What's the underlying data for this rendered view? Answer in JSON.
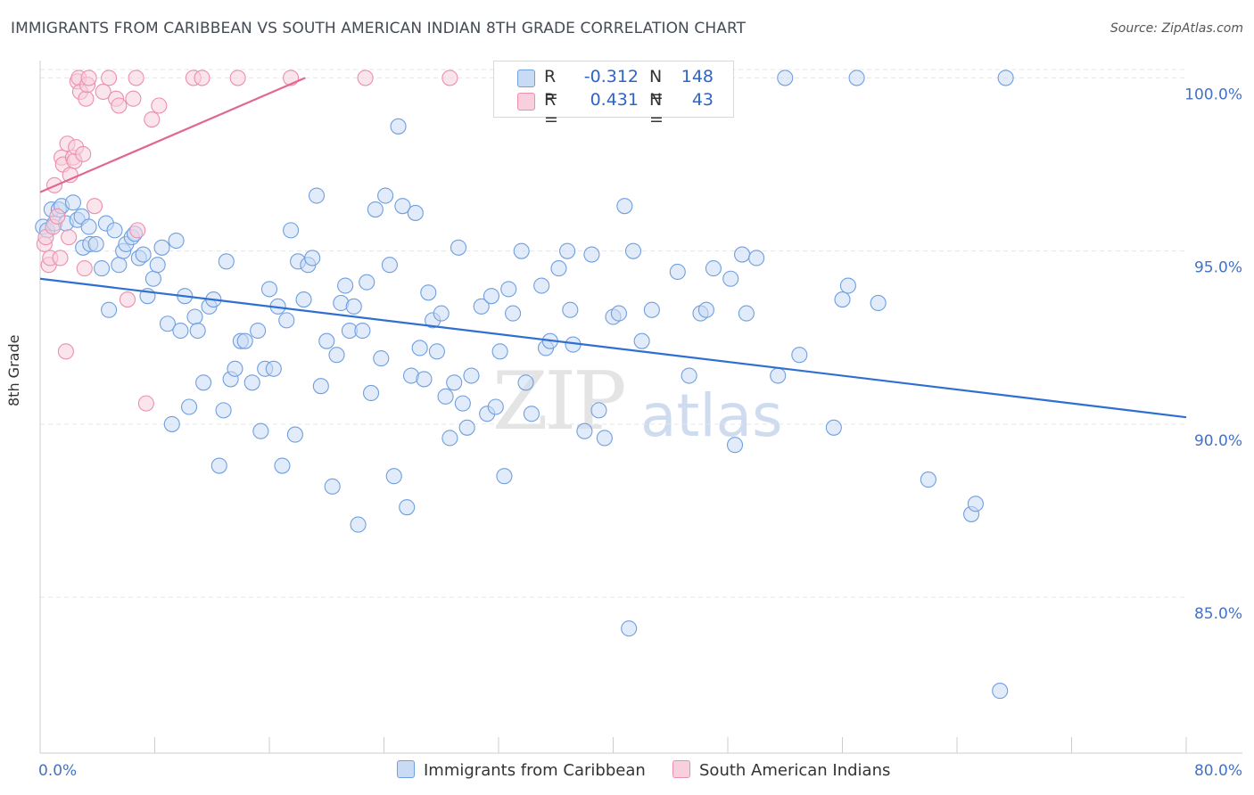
{
  "title": "IMMIGRANTS FROM CARIBBEAN VS SOUTH AMERICAN INDIAN 8TH GRADE CORRELATION CHART",
  "source": "Source: ZipAtlas.com",
  "watermark": {
    "zip": "ZIP",
    "atlas": "atlas"
  },
  "legend": {
    "r_label": "R =",
    "n_label": "N =",
    "rows": [
      {
        "name": "Immigrants from Caribbean",
        "r": "-0.312",
        "n": "148",
        "color": "#9dbde8"
      },
      {
        "name": "South American Indians",
        "r": "0.431",
        "n": "43",
        "color": "#f4a9c0"
      }
    ]
  },
  "chart_data": {
    "type": "scatter",
    "title": "IMMIGRANTS FROM CARIBBEAN VS SOUTH AMERICAN INDIAN 8TH GRADE CORRELATION CHART",
    "xlabel": "",
    "ylabel": "8th Grade",
    "xlim": [
      0,
      80
    ],
    "ylim": [
      80.5,
      100.5
    ],
    "x_tick_labels": [
      "0.0%",
      "80.0%"
    ],
    "y_ticks": [
      85,
      90,
      95,
      100
    ],
    "y_tick_labels": [
      "85.0%",
      "90.0%",
      "95.0%",
      "100.0%"
    ],
    "grid": true,
    "series": [
      {
        "name": "Immigrants from Caribbean",
        "color": "#6f9fe0",
        "fill": "#c9dbf4",
        "trend": {
          "x": [
            0,
            80
          ],
          "y": [
            94.2,
            90.2
          ]
        },
        "points": [
          [
            0.2,
            95.7
          ],
          [
            0.5,
            95.6
          ],
          [
            0.8,
            96.2
          ],
          [
            1.0,
            95.8
          ],
          [
            1.3,
            96.2
          ],
          [
            1.5,
            96.3
          ],
          [
            1.8,
            95.8
          ],
          [
            2.3,
            96.4
          ],
          [
            2.6,
            95.9
          ],
          [
            2.9,
            96.0
          ],
          [
            3.0,
            95.1
          ],
          [
            3.4,
            95.7
          ],
          [
            3.5,
            95.2
          ],
          [
            3.9,
            95.2
          ],
          [
            4.3,
            94.5
          ],
          [
            4.6,
            95.8
          ],
          [
            4.8,
            93.3
          ],
          [
            5.2,
            95.6
          ],
          [
            5.5,
            94.6
          ],
          [
            5.8,
            95.0
          ],
          [
            6.0,
            95.2
          ],
          [
            6.4,
            95.4
          ],
          [
            6.6,
            95.5
          ],
          [
            6.9,
            94.8
          ],
          [
            7.2,
            94.9
          ],
          [
            7.5,
            93.7
          ],
          [
            7.9,
            94.2
          ],
          [
            8.2,
            94.6
          ],
          [
            8.5,
            95.1
          ],
          [
            8.9,
            92.9
          ],
          [
            9.2,
            90.0
          ],
          [
            9.5,
            95.3
          ],
          [
            9.8,
            92.7
          ],
          [
            10.1,
            93.7
          ],
          [
            10.4,
            90.5
          ],
          [
            10.8,
            93.1
          ],
          [
            11.0,
            92.7
          ],
          [
            11.4,
            91.2
          ],
          [
            11.8,
            93.4
          ],
          [
            12.1,
            93.6
          ],
          [
            12.5,
            88.8
          ],
          [
            12.8,
            90.4
          ],
          [
            13.0,
            94.7
          ],
          [
            13.3,
            91.3
          ],
          [
            13.6,
            91.6
          ],
          [
            14.0,
            92.4
          ],
          [
            14.3,
            92.4
          ],
          [
            14.8,
            91.2
          ],
          [
            15.2,
            92.7
          ],
          [
            15.4,
            89.8
          ],
          [
            15.7,
            91.6
          ],
          [
            16.0,
            93.9
          ],
          [
            16.3,
            91.6
          ],
          [
            16.6,
            93.4
          ],
          [
            16.9,
            88.8
          ],
          [
            17.2,
            93.0
          ],
          [
            17.5,
            95.6
          ],
          [
            17.8,
            89.7
          ],
          [
            18.0,
            94.7
          ],
          [
            18.4,
            93.6
          ],
          [
            18.7,
            94.6
          ],
          [
            19.0,
            94.8
          ],
          [
            19.3,
            96.6
          ],
          [
            19.6,
            91.1
          ],
          [
            20.0,
            92.4
          ],
          [
            20.4,
            88.2
          ],
          [
            20.7,
            92.0
          ],
          [
            21.0,
            93.5
          ],
          [
            21.3,
            94.0
          ],
          [
            21.6,
            92.7
          ],
          [
            21.9,
            93.4
          ],
          [
            22.2,
            87.1
          ],
          [
            22.5,
            92.7
          ],
          [
            22.8,
            94.1
          ],
          [
            23.1,
            90.9
          ],
          [
            23.4,
            96.2
          ],
          [
            23.8,
            91.9
          ],
          [
            24.1,
            96.6
          ],
          [
            24.4,
            94.6
          ],
          [
            24.7,
            88.5
          ],
          [
            25.0,
            98.6
          ],
          [
            25.3,
            96.3
          ],
          [
            25.6,
            87.6
          ],
          [
            25.9,
            91.4
          ],
          [
            26.2,
            96.1
          ],
          [
            26.5,
            92.2
          ],
          [
            26.8,
            91.3
          ],
          [
            27.1,
            93.8
          ],
          [
            27.4,
            93.0
          ],
          [
            27.7,
            92.1
          ],
          [
            28.0,
            93.2
          ],
          [
            28.3,
            90.8
          ],
          [
            28.6,
            89.6
          ],
          [
            28.9,
            91.2
          ],
          [
            29.2,
            95.1
          ],
          [
            29.5,
            90.6
          ],
          [
            29.8,
            89.9
          ],
          [
            30.1,
            91.4
          ],
          [
            30.8,
            93.4
          ],
          [
            31.2,
            90.3
          ],
          [
            31.5,
            93.7
          ],
          [
            31.8,
            90.5
          ],
          [
            32.1,
            92.1
          ],
          [
            32.4,
            88.5
          ],
          [
            32.7,
            93.9
          ],
          [
            33.0,
            93.2
          ],
          [
            33.6,
            95.0
          ],
          [
            33.9,
            91.2
          ],
          [
            34.3,
            90.3
          ],
          [
            35.0,
            94.0
          ],
          [
            35.3,
            92.2
          ],
          [
            35.6,
            92.4
          ],
          [
            36.2,
            94.5
          ],
          [
            36.8,
            95.0
          ],
          [
            37.0,
            93.3
          ],
          [
            37.2,
            92.3
          ],
          [
            38.0,
            89.8
          ],
          [
            38.5,
            94.9
          ],
          [
            39.0,
            90.4
          ],
          [
            39.4,
            89.6
          ],
          [
            40.0,
            93.1
          ],
          [
            40.4,
            93.2
          ],
          [
            40.8,
            96.3
          ],
          [
            41.1,
            84.1
          ],
          [
            41.4,
            95.0
          ],
          [
            42.0,
            92.4
          ],
          [
            42.7,
            93.3
          ],
          [
            44.5,
            94.4
          ],
          [
            45.3,
            91.4
          ],
          [
            46.1,
            93.2
          ],
          [
            46.5,
            93.3
          ],
          [
            47.0,
            94.5
          ],
          [
            48.2,
            94.2
          ],
          [
            48.5,
            89.4
          ],
          [
            49.0,
            94.9
          ],
          [
            49.3,
            93.2
          ],
          [
            50.0,
            94.8
          ],
          [
            51.5,
            91.4
          ],
          [
            52.0,
            100.0
          ],
          [
            53.0,
            92.0
          ],
          [
            55.4,
            89.9
          ],
          [
            56.0,
            93.6
          ],
          [
            56.4,
            94.0
          ],
          [
            57.0,
            100.0
          ],
          [
            58.5,
            93.5
          ],
          [
            62.0,
            88.4
          ],
          [
            65.0,
            87.4
          ],
          [
            65.3,
            87.7
          ],
          [
            67.0,
            82.3
          ],
          [
            67.4,
            100.0
          ]
        ]
      },
      {
        "name": "South American Indians",
        "color": "#ec8fac",
        "fill": "#f8d0dd",
        "trend": {
          "x": [
            0,
            18.5
          ],
          "y": [
            96.7,
            100.0
          ]
        },
        "points": [
          [
            0.3,
            95.2
          ],
          [
            0.4,
            95.4
          ],
          [
            0.6,
            94.6
          ],
          [
            0.7,
            94.8
          ],
          [
            0.9,
            95.7
          ],
          [
            1.0,
            96.9
          ],
          [
            1.2,
            96.0
          ],
          [
            1.4,
            94.8
          ],
          [
            1.5,
            97.7
          ],
          [
            1.6,
            97.5
          ],
          [
            1.8,
            92.1
          ],
          [
            1.9,
            98.1
          ],
          [
            2.0,
            95.4
          ],
          [
            2.1,
            97.2
          ],
          [
            2.3,
            97.7
          ],
          [
            2.4,
            97.6
          ],
          [
            2.5,
            98.0
          ],
          [
            2.6,
            99.9
          ],
          [
            2.7,
            100.0
          ],
          [
            2.8,
            99.6
          ],
          [
            3.0,
            97.8
          ],
          [
            3.1,
            94.5
          ],
          [
            3.2,
            99.4
          ],
          [
            3.3,
            99.8
          ],
          [
            3.4,
            100.0
          ],
          [
            3.8,
            96.3
          ],
          [
            4.4,
            99.6
          ],
          [
            4.8,
            100.0
          ],
          [
            5.3,
            99.4
          ],
          [
            5.5,
            99.2
          ],
          [
            6.1,
            93.6
          ],
          [
            6.5,
            99.4
          ],
          [
            6.7,
            100.0
          ],
          [
            6.8,
            95.6
          ],
          [
            7.4,
            90.6
          ],
          [
            7.8,
            98.8
          ],
          [
            8.3,
            99.2
          ],
          [
            10.7,
            100.0
          ],
          [
            11.3,
            100.0
          ],
          [
            13.8,
            100.0
          ],
          [
            17.5,
            100.0
          ],
          [
            22.7,
            100.0
          ],
          [
            28.6,
            100.0
          ]
        ]
      }
    ]
  }
}
